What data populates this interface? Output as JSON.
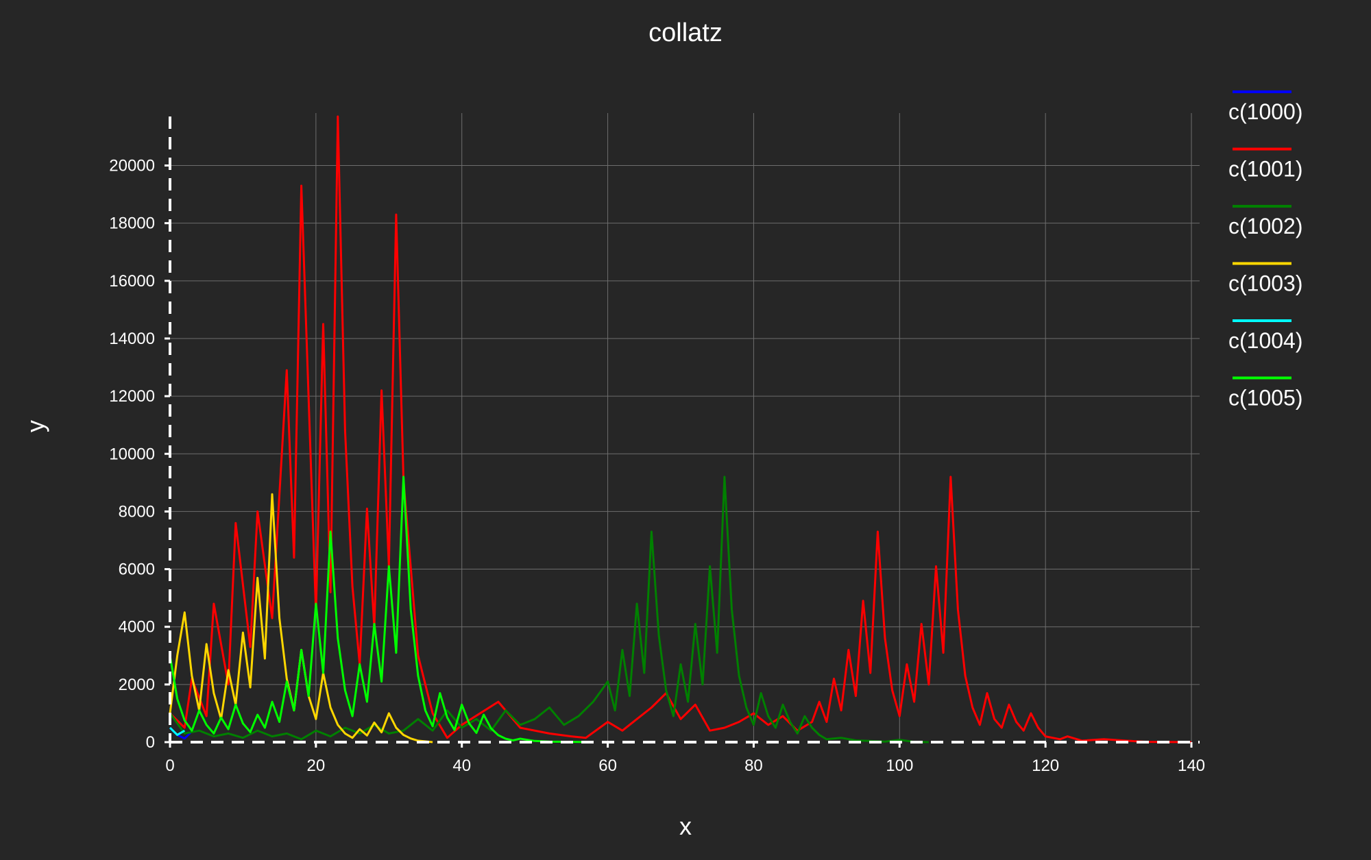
{
  "chart_data": {
    "type": "line",
    "title": "collatz",
    "xlabel": "x",
    "ylabel": "y",
    "xlim": [
      0,
      140
    ],
    "ylim": [
      0,
      21700
    ],
    "xticks": [
      0,
      20,
      40,
      60,
      80,
      100,
      120,
      140
    ],
    "yticks": [
      0,
      2000,
      4000,
      6000,
      8000,
      10000,
      12000,
      14000,
      16000,
      18000,
      20000
    ],
    "grid": true,
    "legend_position": "right",
    "series": [
      {
        "name": "c(1000)",
        "color": "#0000ff",
        "x": [
          0,
          1,
          2,
          3
        ],
        "y": [
          500,
          250,
          125,
          376
        ]
      },
      {
        "name": "c(1001)",
        "color": "#ff0000",
        "x": [
          0,
          2,
          3,
          5,
          6,
          8,
          9,
          11,
          12,
          14,
          16,
          17,
          18,
          20,
          21,
          22,
          23,
          24,
          25,
          26,
          27,
          28,
          29,
          30,
          31,
          32,
          34,
          36,
          38,
          40,
          45,
          48,
          52,
          55,
          57,
          60,
          62,
          64,
          66,
          68,
          70,
          72,
          74,
          76,
          78,
          80,
          82,
          84,
          86,
          88,
          89,
          90,
          91,
          92,
          93,
          94,
          95,
          96,
          97,
          98,
          99,
          100,
          101,
          102,
          103,
          104,
          105,
          106,
          107,
          108,
          109,
          110,
          111,
          112,
          113,
          114,
          115,
          116,
          117,
          118,
          119,
          120,
          122,
          123,
          125,
          128,
          131,
          134,
          140
        ],
        "y": [
          1001,
          500,
          2200,
          900,
          4800,
          2000,
          7600,
          3300,
          8000,
          4300,
          12900,
          6400,
          19300,
          4500,
          14500,
          5200,
          21700,
          10800,
          5400,
          2700,
          8100,
          4000,
          12200,
          6100,
          18300,
          9100,
          3000,
          1000,
          150,
          600,
          1400,
          500,
          300,
          200,
          150,
          700,
          400,
          800,
          1200,
          1700,
          800,
          1300,
          400,
          500,
          700,
          1000,
          600,
          900,
          400,
          700,
          1400,
          700,
          2200,
          1100,
          3200,
          1600,
          4900,
          2400,
          7300,
          3600,
          1800,
          900,
          2700,
          1400,
          4100,
          2000,
          6100,
          3100,
          9200,
          4600,
          2300,
          1200,
          600,
          1700,
          800,
          500,
          1300,
          700,
          400,
          1000,
          500,
          200,
          100,
          200,
          50,
          100,
          50,
          10,
          1
        ]
      },
      {
        "name": "c(1002)",
        "color": "#008000",
        "x": [
          0,
          2,
          4,
          6,
          8,
          10,
          12,
          14,
          16,
          18,
          20,
          22,
          24,
          26,
          28,
          30,
          32,
          34,
          36,
          38,
          40,
          42,
          44,
          46,
          48,
          50,
          52,
          54,
          56,
          58,
          60,
          61,
          62,
          63,
          64,
          65,
          66,
          67,
          68,
          69,
          70,
          71,
          72,
          73,
          74,
          75,
          76,
          77,
          78,
          79,
          80,
          81,
          82,
          83,
          84,
          85,
          86,
          87,
          88,
          89,
          90,
          92,
          94,
          96,
          98,
          100,
          102,
          104
        ],
        "y": [
          1002,
          300,
          400,
          200,
          300,
          150,
          400,
          200,
          300,
          100,
          400,
          200,
          500,
          300,
          600,
          300,
          400,
          800,
          400,
          1100,
          500,
          800,
          400,
          1100,
          600,
          800,
          1200,
          600,
          900,
          1400,
          2100,
          1100,
          3200,
          1600,
          4800,
          2400,
          7300,
          3700,
          1800,
          900,
          2700,
          1400,
          4100,
          2000,
          6100,
          3100,
          9200,
          4600,
          2300,
          1200,
          600,
          1700,
          900,
          500,
          1300,
          700,
          300,
          900,
          500,
          250,
          100,
          150,
          60,
          40,
          20,
          80,
          10,
          1
        ]
      },
      {
        "name": "c(1003)",
        "color": "#ffd700",
        "x": [
          0,
          1,
          2,
          3,
          4,
          5,
          6,
          7,
          8,
          9,
          10,
          11,
          12,
          13,
          14,
          15,
          16,
          17,
          18,
          19,
          20,
          21,
          22,
          23,
          24,
          25,
          26,
          27,
          28,
          29,
          30,
          31,
          32,
          33,
          34,
          36
        ],
        "y": [
          1003,
          3000,
          4500,
          2300,
          1100,
          3400,
          1700,
          800,
          2500,
          1300,
          3800,
          1900,
          5700,
          2900,
          8600,
          4300,
          2200,
          1100,
          3200,
          1600,
          800,
          2400,
          1200,
          600,
          300,
          150,
          450,
          230,
          680,
          340,
          1000,
          500,
          250,
          125,
          50,
          1
        ]
      },
      {
        "name": "c(1004)",
        "color": "#00ffff",
        "x": [
          0,
          1,
          2
        ],
        "y": [
          502,
          251,
          400
        ]
      },
      {
        "name": "c(1005)",
        "color": "#00ff00",
        "x": [
          0,
          1,
          2,
          3,
          4,
          5,
          6,
          7,
          8,
          9,
          10,
          11,
          12,
          13,
          14,
          15,
          16,
          17,
          18,
          19,
          20,
          21,
          22,
          23,
          24,
          25,
          26,
          27,
          28,
          29,
          30,
          31,
          32,
          33,
          34,
          35,
          36,
          37,
          38,
          39,
          40,
          41,
          42,
          43,
          44,
          45,
          46,
          47,
          48,
          50,
          52,
          55,
          58
        ],
        "y": [
          3000,
          1500,
          750,
          400,
          1100,
          600,
          300,
          850,
          450,
          1300,
          650,
          350,
          950,
          500,
          1400,
          700,
          2100,
          1100,
          3200,
          1600,
          4800,
          2400,
          7300,
          3600,
          1800,
          900,
          2700,
          1400,
          4100,
          2100,
          6100,
          3100,
          9200,
          4600,
          2300,
          1100,
          550,
          1700,
          850,
          420,
          1300,
          650,
          320,
          950,
          480,
          240,
          120,
          60,
          120,
          40,
          20,
          10,
          1
        ]
      }
    ]
  }
}
